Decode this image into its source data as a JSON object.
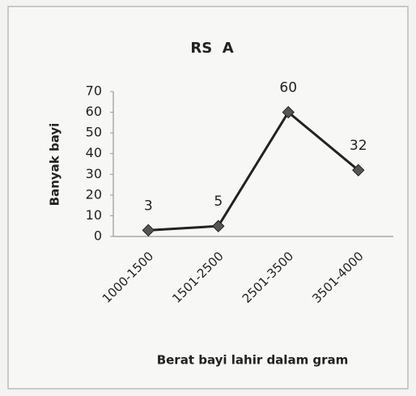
{
  "chart_data": {
    "type": "line",
    "title": "RS  A",
    "x_label": "Berat bayi lahir dalam gram",
    "y_label": "Banyak bayi",
    "categories": [
      "1000-1500",
      "1501-2500",
      "2501-3500",
      "3501-4000"
    ],
    "series": [
      {
        "name": "RS A",
        "color": "#222222",
        "values": [
          3,
          5,
          60,
          32
        ]
      }
    ],
    "ylim": [
      0,
      70
    ],
    "yticks": [
      0,
      10,
      20,
      30,
      40,
      50,
      60,
      70
    ],
    "grid": false,
    "legend": false
  }
}
